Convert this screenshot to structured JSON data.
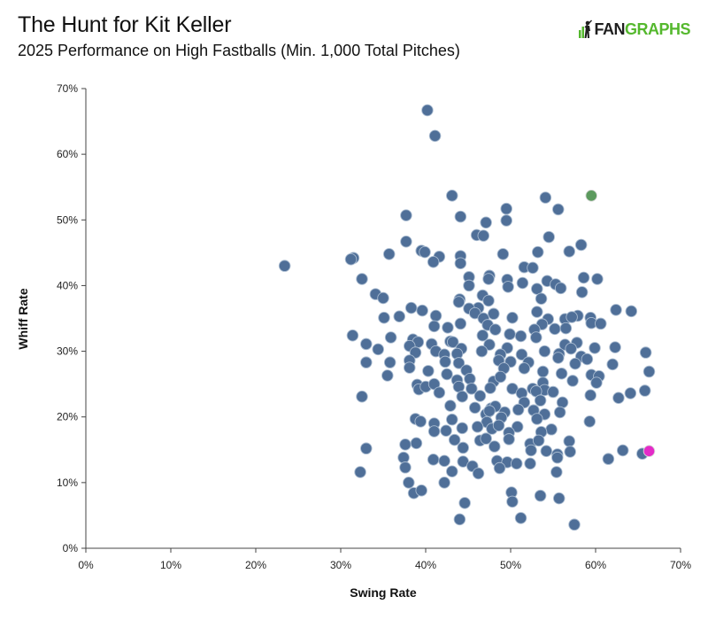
{
  "header": {
    "title": "The Hunt for Kit Keller",
    "subtitle": "2025 Performance on High Fastballs (Min. 1,000 Total Pitches)",
    "logo_fan": "FAN",
    "logo_graphs": "GRAPHS"
  },
  "chart_data": {
    "type": "scatter",
    "xlabel": "Swing Rate",
    "ylabel": "Whiff Rate",
    "xlim": [
      0,
      70
    ],
    "ylim": [
      0,
      70
    ],
    "x_ticks": [
      "0%",
      "10%",
      "20%",
      "30%",
      "40%",
      "50%",
      "60%",
      "70%"
    ],
    "y_ticks": [
      "0%",
      "10%",
      "20%",
      "30%",
      "40%",
      "50%",
      "60%",
      "70%"
    ],
    "grid": false,
    "colors": {
      "default": "#4f6f98",
      "green": "#5c9a5e",
      "magenta": "#e42bc8"
    },
    "highlights": [
      {
        "x": 59.5,
        "y": 53.7,
        "color": "green"
      },
      {
        "x": 66.3,
        "y": 14.8,
        "color": "magenta"
      }
    ],
    "points": [
      [
        40.2,
        66.7
      ],
      [
        41.1,
        62.8
      ],
      [
        43.1,
        53.7
      ],
      [
        54.1,
        53.4
      ],
      [
        49.5,
        51.7
      ],
      [
        55.6,
        51.6
      ],
      [
        37.7,
        50.7
      ],
      [
        44.1,
        50.5
      ],
      [
        47.1,
        49.6
      ],
      [
        49.5,
        49.9
      ],
      [
        46.0,
        47.7
      ],
      [
        46.8,
        47.6
      ],
      [
        54.5,
        47.4
      ],
      [
        37.7,
        46.7
      ],
      [
        58.3,
        46.2
      ],
      [
        39.5,
        45.3
      ],
      [
        35.7,
        44.8
      ],
      [
        39.9,
        45.1
      ],
      [
        44.1,
        44.5
      ],
      [
        53.2,
        45.1
      ],
      [
        49.1,
        44.8
      ],
      [
        56.9,
        45.2
      ],
      [
        31.5,
        44.2
      ],
      [
        31.2,
        44.0
      ],
      [
        41.6,
        44.4
      ],
      [
        40.9,
        43.6
      ],
      [
        23.4,
        43.0
      ],
      [
        44.1,
        43.4
      ],
      [
        51.6,
        42.8
      ],
      [
        52.6,
        42.7
      ],
      [
        32.5,
        41.0
      ],
      [
        47.5,
        41.5
      ],
      [
        45.1,
        41.3
      ],
      [
        47.4,
        41.0
      ],
      [
        54.3,
        40.7
      ],
      [
        58.6,
        41.2
      ],
      [
        60.2,
        41.0
      ],
      [
        49.6,
        40.9
      ],
      [
        51.4,
        40.4
      ],
      [
        55.3,
        40.2
      ],
      [
        55.9,
        39.6
      ],
      [
        45.1,
        40.0
      ],
      [
        53.1,
        39.5
      ],
      [
        49.7,
        39.8
      ],
      [
        58.4,
        39.0
      ],
      [
        34.1,
        38.7
      ],
      [
        35.0,
        38.1
      ],
      [
        46.7,
        38.5
      ],
      [
        44.0,
        37.9
      ],
      [
        53.6,
        38.0
      ],
      [
        43.9,
        37.5
      ],
      [
        47.4,
        37.7
      ],
      [
        38.3,
        36.6
      ],
      [
        46.2,
        36.6
      ],
      [
        39.6,
        36.2
      ],
      [
        45.1,
        36.5
      ],
      [
        45.8,
        35.8
      ],
      [
        48.0,
        35.7
      ],
      [
        62.4,
        36.3
      ],
      [
        64.2,
        36.1
      ],
      [
        53.1,
        36.0
      ],
      [
        57.9,
        35.4
      ],
      [
        59.4,
        35.1
      ],
      [
        36.9,
        35.3
      ],
      [
        41.2,
        35.4
      ],
      [
        35.1,
        35.1
      ],
      [
        46.8,
        35.0
      ],
      [
        50.2,
        35.1
      ],
      [
        54.4,
        34.9
      ],
      [
        56.4,
        34.9
      ],
      [
        57.2,
        35.2
      ],
      [
        41.0,
        33.8
      ],
      [
        42.6,
        33.6
      ],
      [
        47.3,
        34.0
      ],
      [
        53.7,
        34.1
      ],
      [
        44.1,
        34.2
      ],
      [
        52.8,
        33.3
      ],
      [
        48.2,
        33.3
      ],
      [
        55.2,
        33.4
      ],
      [
        56.5,
        33.5
      ],
      [
        59.5,
        34.3
      ],
      [
        60.6,
        34.2
      ],
      [
        31.4,
        32.4
      ],
      [
        35.9,
        32.1
      ],
      [
        38.5,
        31.8
      ],
      [
        39.1,
        31.4
      ],
      [
        42.9,
        31.5
      ],
      [
        43.2,
        31.4
      ],
      [
        46.7,
        32.4
      ],
      [
        49.9,
        32.6
      ],
      [
        51.2,
        32.3
      ],
      [
        53.0,
        32.1
      ],
      [
        47.5,
        31.0
      ],
      [
        38.1,
        30.8
      ],
      [
        40.7,
        31.1
      ],
      [
        44.2,
        30.4
      ],
      [
        49.6,
        30.5
      ],
      [
        56.4,
        31.0
      ],
      [
        57.8,
        31.3
      ],
      [
        33.0,
        31.1
      ],
      [
        34.4,
        30.3
      ],
      [
        38.8,
        29.8
      ],
      [
        41.2,
        30.0
      ],
      [
        42.2,
        29.5
      ],
      [
        43.7,
        29.6
      ],
      [
        46.6,
        30.0
      ],
      [
        48.8,
        29.5
      ],
      [
        51.3,
        29.5
      ],
      [
        54.0,
        30.0
      ],
      [
        55.7,
        29.6
      ],
      [
        57.1,
        30.4
      ],
      [
        58.3,
        29.2
      ],
      [
        59.9,
        30.5
      ],
      [
        62.3,
        30.6
      ],
      [
        65.9,
        29.8
      ],
      [
        33.0,
        28.3
      ],
      [
        35.8,
        28.3
      ],
      [
        38.1,
        28.6
      ],
      [
        42.3,
        28.4
      ],
      [
        43.9,
        28.2
      ],
      [
        48.6,
        28.6
      ],
      [
        50.0,
        28.4
      ],
      [
        52.1,
        28.3
      ],
      [
        55.6,
        29.0
      ],
      [
        57.6,
        28.1
      ],
      [
        59.0,
        28.8
      ],
      [
        62.0,
        28.0
      ],
      [
        38.1,
        27.5
      ],
      [
        40.3,
        27.0
      ],
      [
        44.8,
        27.1
      ],
      [
        49.2,
        27.4
      ],
      [
        51.6,
        27.4
      ],
      [
        53.8,
        26.9
      ],
      [
        56.0,
        26.6
      ],
      [
        59.5,
        26.4
      ],
      [
        60.4,
        26.2
      ],
      [
        66.3,
        26.9
      ],
      [
        35.5,
        26.3
      ],
      [
        42.5,
        26.5
      ],
      [
        43.7,
        25.6
      ],
      [
        45.2,
        25.8
      ],
      [
        48.0,
        25.4
      ],
      [
        48.8,
        26.1
      ],
      [
        53.8,
        25.2
      ],
      [
        57.3,
        25.5
      ],
      [
        39.0,
        24.9
      ],
      [
        39.2,
        24.2
      ],
      [
        40.0,
        24.6
      ],
      [
        41.0,
        25.0
      ],
      [
        43.9,
        24.6
      ],
      [
        45.4,
        24.3
      ],
      [
        47.6,
        24.4
      ],
      [
        52.6,
        24.3
      ],
      [
        54.0,
        24.1
      ],
      [
        50.2,
        24.3
      ],
      [
        51.3,
        23.6
      ],
      [
        53.0,
        23.9
      ],
      [
        55.0,
        23.8
      ],
      [
        59.4,
        23.3
      ],
      [
        60.1,
        25.2
      ],
      [
        64.1,
        23.6
      ],
      [
        65.8,
        24.0
      ],
      [
        32.5,
        23.1
      ],
      [
        41.6,
        23.7
      ],
      [
        44.3,
        23.1
      ],
      [
        46.4,
        23.2
      ],
      [
        51.6,
        22.2
      ],
      [
        53.5,
        22.5
      ],
      [
        56.1,
        22.2
      ],
      [
        62.7,
        22.9
      ],
      [
        42.9,
        21.7
      ],
      [
        45.8,
        21.4
      ],
      [
        47.7,
        21.3
      ],
      [
        48.2,
        21.6
      ],
      [
        50.9,
        21.1
      ],
      [
        52.7,
        21.0
      ],
      [
        55.8,
        20.7
      ],
      [
        47.1,
        20.4
      ],
      [
        47.5,
        20.9
      ],
      [
        49.3,
        20.7
      ],
      [
        54.0,
        20.4
      ],
      [
        38.8,
        19.7
      ],
      [
        39.4,
        19.3
      ],
      [
        41.0,
        19.0
      ],
      [
        43.1,
        19.6
      ],
      [
        47.2,
        19.2
      ],
      [
        48.9,
        19.9
      ],
      [
        53.1,
        19.7
      ],
      [
        59.3,
        19.3
      ],
      [
        44.3,
        18.3
      ],
      [
        46.1,
        18.5
      ],
      [
        47.8,
        18.2
      ],
      [
        48.6,
        18.7
      ],
      [
        50.8,
        18.5
      ],
      [
        54.8,
        18.1
      ],
      [
        41.0,
        17.8
      ],
      [
        42.4,
        17.9
      ],
      [
        49.8,
        17.6
      ],
      [
        53.6,
        17.7
      ],
      [
        43.4,
        16.5
      ],
      [
        46.4,
        16.4
      ],
      [
        47.1,
        16.7
      ],
      [
        49.8,
        16.6
      ],
      [
        52.3,
        15.9
      ],
      [
        53.3,
        16.4
      ],
      [
        56.9,
        16.3
      ],
      [
        37.6,
        15.8
      ],
      [
        38.9,
        16.0
      ],
      [
        44.4,
        15.3
      ],
      [
        48.1,
        15.5
      ],
      [
        52.4,
        14.9
      ],
      [
        54.2,
        14.8
      ],
      [
        55.5,
        14.3
      ],
      [
        57.0,
        14.7
      ],
      [
        63.2,
        14.9
      ],
      [
        65.5,
        14.4
      ],
      [
        33.0,
        15.2
      ],
      [
        37.4,
        13.8
      ],
      [
        40.9,
        13.5
      ],
      [
        42.2,
        13.3
      ],
      [
        44.4,
        13.2
      ],
      [
        45.5,
        12.5
      ],
      [
        48.4,
        13.3
      ],
      [
        49.6,
        13.1
      ],
      [
        50.7,
        12.9
      ],
      [
        52.3,
        12.9
      ],
      [
        55.5,
        13.8
      ],
      [
        61.5,
        13.6
      ],
      [
        32.3,
        11.6
      ],
      [
        37.6,
        12.3
      ],
      [
        43.1,
        11.7
      ],
      [
        46.2,
        11.4
      ],
      [
        48.7,
        12.2
      ],
      [
        55.4,
        11.6
      ],
      [
        38.0,
        10.0
      ],
      [
        42.2,
        10.0
      ],
      [
        50.1,
        8.5
      ],
      [
        38.6,
        8.4
      ],
      [
        39.5,
        8.8
      ],
      [
        53.5,
        8.0
      ],
      [
        55.7,
        7.6
      ],
      [
        44.6,
        6.9
      ],
      [
        50.2,
        7.1
      ],
      [
        51.2,
        4.6
      ],
      [
        44.0,
        4.4
      ],
      [
        57.5,
        3.6
      ]
    ]
  }
}
